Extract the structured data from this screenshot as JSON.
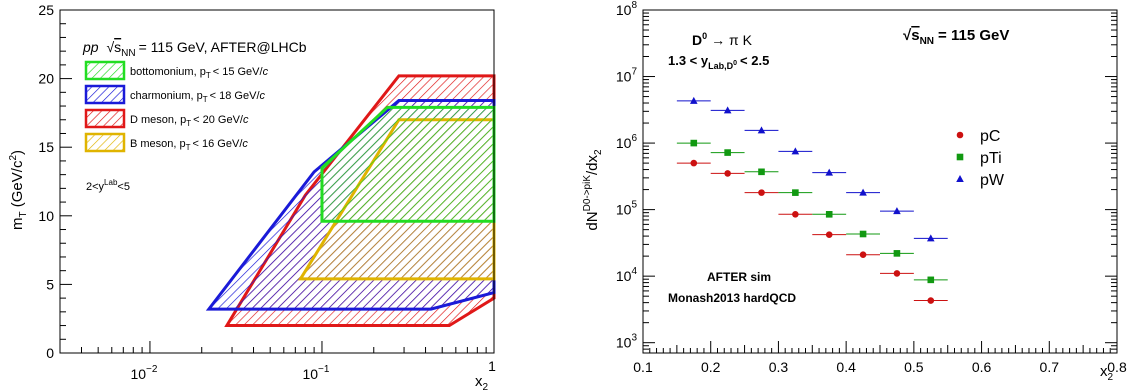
{
  "chart_data": [
    {
      "type": "area",
      "xscale": "log",
      "xlim": [
        0.003,
        1
      ],
      "ylim": [
        0,
        25
      ],
      "xlabel": "x",
      "xlabel_sub": "2",
      "ylabel": "m",
      "ylabel_sub": "T",
      "ylabel_unit": "(GeV/c",
      "ylabel_unit_sup": "2",
      "ylabel_unit_end": ")",
      "xticks": [
        {
          "base": "10",
          "exp": "−2",
          "value": 0.01
        },
        {
          "base": "10",
          "exp": "−1",
          "value": 0.1
        },
        {
          "base": "",
          "exp": "1",
          "value": 1
        }
      ],
      "yticks": [
        "0",
        "5",
        "10",
        "15",
        "20",
        "25"
      ],
      "title_pre": "pp",
      "title_sqrt": "s",
      "title_sub": "NN",
      "title_post": "= 115 GeV, AFTER@LHCb",
      "rapidity_label": "2<y",
      "rapidity_sup": "Lab",
      "rapidity_end": "<5",
      "series": [
        {
          "name": "bottomonium, p",
          "sub": "T",
          "cut": "< 15 GeV/",
          "unit": "c",
          "color": "#22dd22",
          "polygon": [
            [
              0.1,
              9.6
            ],
            [
              1,
              9.6
            ],
            [
              1,
              17.9
            ],
            [
              0.24,
              17.9
            ],
            [
              0.1,
              13.5
            ]
          ]
        },
        {
          "name": "charmonium, p",
          "sub": "T",
          "cut": "< 18 GeV/",
          "unit": "c",
          "color": "#1a1ad8",
          "polygon": [
            [
              0.022,
              3.2
            ],
            [
              0.43,
              3.2
            ],
            [
              1,
              4.4
            ],
            [
              1,
              18.4
            ],
            [
              0.28,
              18.4
            ],
            [
              0.09,
              13.2
            ]
          ]
        },
        {
          "name": "D meson, p",
          "sub": "T",
          "cut": "< 20 GeV/",
          "unit": "c",
          "color": "#e01818",
          "polygon": [
            [
              0.028,
              2.0
            ],
            [
              0.55,
              2.0
            ],
            [
              1,
              4.0
            ],
            [
              1,
              20.2
            ],
            [
              0.28,
              20.2
            ],
            [
              0.08,
              11.5
            ]
          ]
        },
        {
          "name": "B meson, p",
          "sub": "T",
          "cut": "< 16 GeV/",
          "unit": "c",
          "color": "#e0b400",
          "polygon": [
            [
              0.075,
              5.4
            ],
            [
              1,
              5.4
            ],
            [
              1,
              17.0
            ],
            [
              0.28,
              17.0
            ],
            [
              0.075,
              5.4
            ]
          ]
        }
      ]
    },
    {
      "type": "scatter",
      "yscale": "log",
      "xlim": [
        0.1,
        0.8
      ],
      "ylim": [
        700,
        100000000
      ],
      "xlabel": "x",
      "xlabel_sub": "2",
      "ylabel": "dN",
      "ylabel_sup": "D0->piK",
      "ylabel_end": "/dx",
      "ylabel_sub": "2",
      "xticks": [
        "0.1",
        "0.2",
        "0.3",
        "0.4",
        "0.5",
        "0.6",
        "0.7",
        "0.8"
      ],
      "yticks": [
        {
          "base": "10",
          "exp": "3",
          "value": 1000
        },
        {
          "base": "10",
          "exp": "4",
          "value": 10000
        },
        {
          "base": "10",
          "exp": "5",
          "value": 100000
        },
        {
          "base": "10",
          "exp": "6",
          "value": 1000000
        },
        {
          "base": "10",
          "exp": "7",
          "value": 10000000
        },
        {
          "base": "10",
          "exp": "8",
          "value": 100000000
        }
      ],
      "decay_label": "D",
      "decay_sup": "0",
      "decay_arrow": "→ π K",
      "cut_label": "1.3 < y",
      "cut_sub": "Lab,D",
      "cut_sub_sup": "0",
      "cut_end": "< 2.5",
      "energy_sqrt": "s",
      "energy_sub": "NN",
      "energy_post": "= 115 GeV",
      "sim_label_1": "AFTER sim",
      "sim_label_2": "Monash2013 hardQCD",
      "series": [
        {
          "name": "pC",
          "color": "#cc1111",
          "marker": "circle",
          "x": [
            0.175,
            0.225,
            0.275,
            0.325,
            0.375,
            0.425,
            0.475,
            0.525
          ],
          "y": [
            500000,
            350000,
            180000,
            85000,
            42000,
            21000,
            11000,
            4300
          ]
        },
        {
          "name": "pTi",
          "color": "#119911",
          "marker": "square",
          "x": [
            0.175,
            0.225,
            0.275,
            0.325,
            0.375,
            0.425,
            0.475,
            0.525
          ],
          "y": [
            1000000,
            720000,
            370000,
            180000,
            85000,
            43000,
            22000,
            8800
          ]
        },
        {
          "name": "pW",
          "color": "#1111cc",
          "marker": "triangle",
          "x": [
            0.175,
            0.225,
            0.275,
            0.325,
            0.375,
            0.425,
            0.475,
            0.525
          ],
          "y": [
            4300000,
            3100000,
            1550000,
            750000,
            360000,
            180000,
            95000,
            37000
          ]
        }
      ]
    }
  ]
}
